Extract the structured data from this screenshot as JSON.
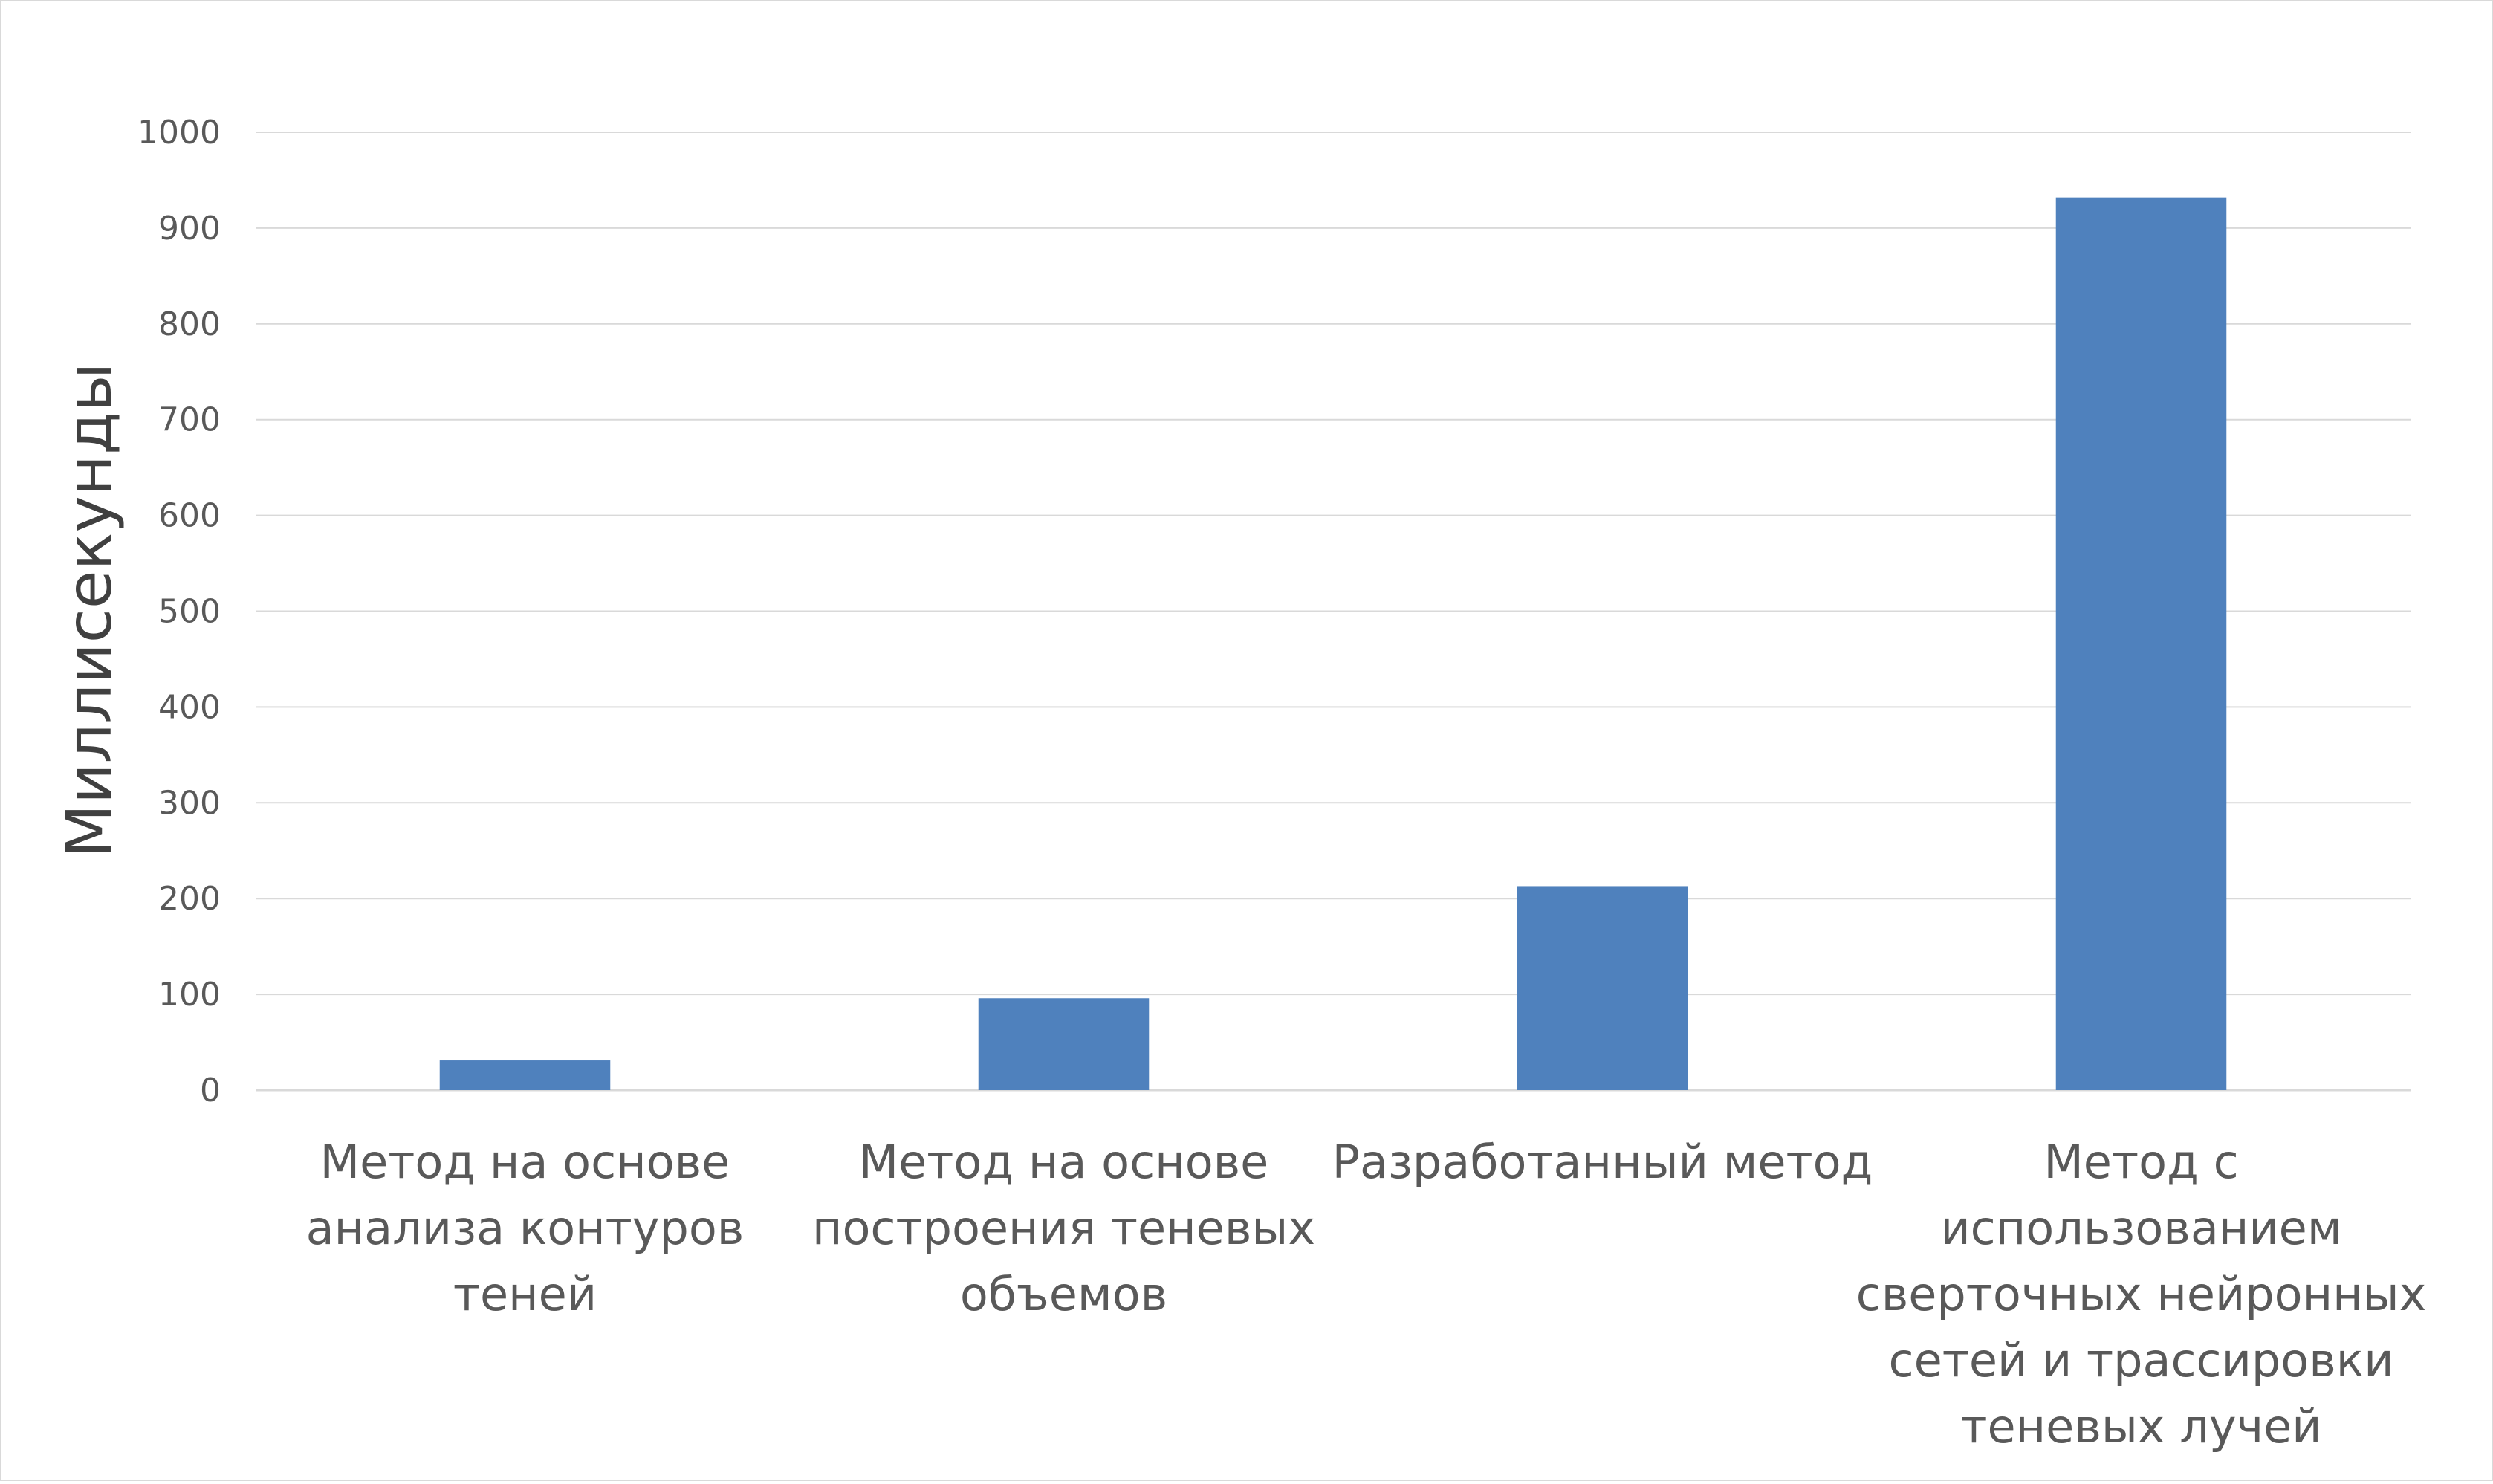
{
  "chart_data": {
    "type": "bar",
    "title": "",
    "xlabel": "",
    "ylabel": "Миллисекунды",
    "ylim": [
      0,
      1000
    ],
    "yticks": [
      0,
      100,
      200,
      300,
      400,
      500,
      600,
      700,
      800,
      900,
      1000
    ],
    "grid": true,
    "legend": "none",
    "categories": [
      [
        "Метод на основе",
        "анализа контуров",
        "теней"
      ],
      [
        "Метод на основе",
        "построения теневых",
        "объемов"
      ],
      [
        "Разработанный метод"
      ],
      [
        "Метод с",
        "использованием",
        "сверточных нейронных",
        "сетей и трассировки",
        "теневых лучей"
      ]
    ],
    "values": [
      31,
      96,
      213,
      932
    ],
    "colors": {
      "bar": "#4f81bd",
      "grid": "#d9d9d9",
      "text": "#595959"
    }
  }
}
